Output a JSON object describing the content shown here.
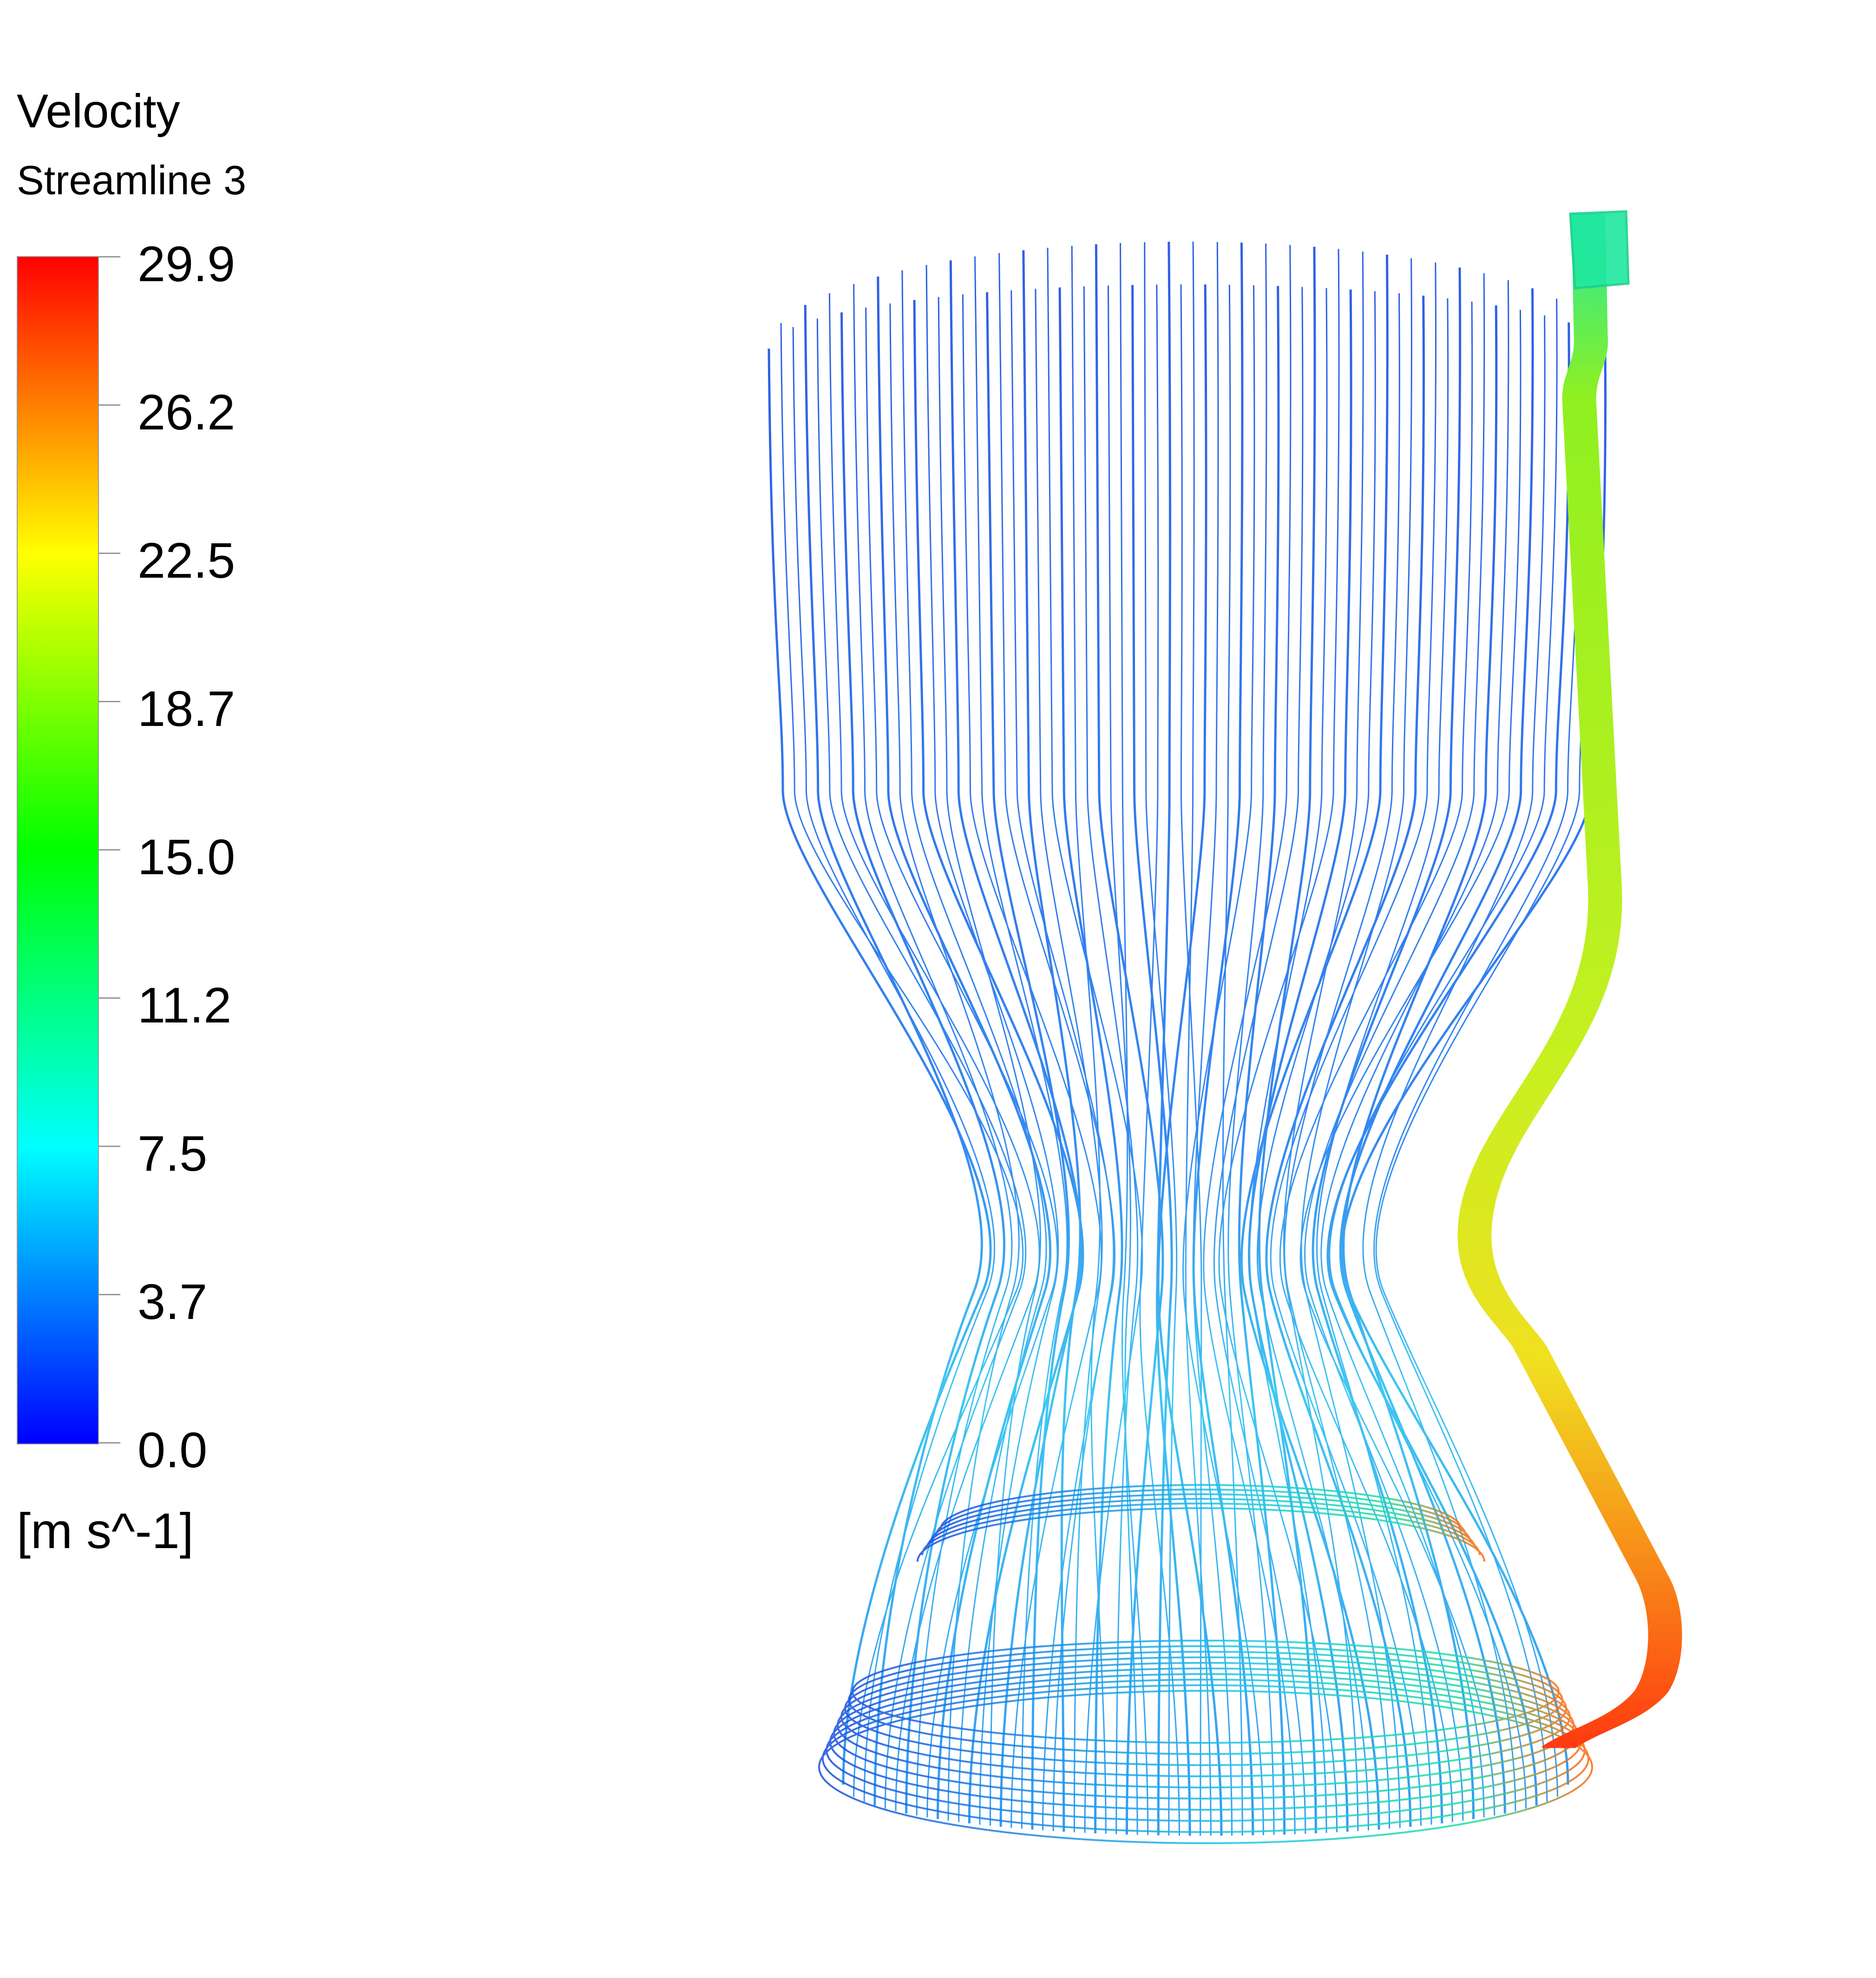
{
  "legend": {
    "title": "Velocity",
    "subtitle": "Streamline 3",
    "unit": "[m s^-1]",
    "ticks": [
      "29.9",
      "26.2",
      "22.5",
      "18.7",
      "15.0",
      "11.2",
      "7.5",
      "3.7",
      "0.0"
    ],
    "colormap": [
      "#ff0000",
      "#ff7f00",
      "#ffff00",
      "#7fff00",
      "#00ff00",
      "#00ff7f",
      "#00ffff",
      "#007fff",
      "#0000ff"
    ]
  },
  "colors": {
    "background": "#ffffff",
    "low_velocity": "#1a4fe0",
    "mid_velocity": "#2fa8f0",
    "pipe_flow": "#a6f020",
    "peak_velocity": "#ff3a10"
  }
}
